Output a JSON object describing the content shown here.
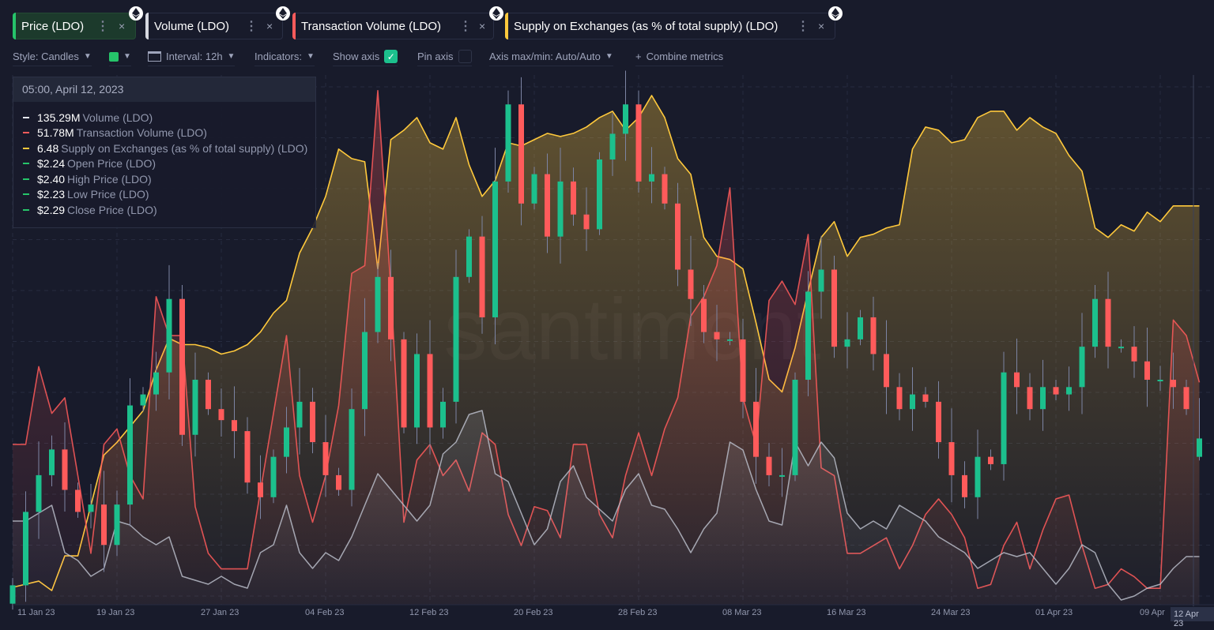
{
  "header": {
    "tabs": [
      {
        "label": "Price (LDO)",
        "color": "#26c46a",
        "active": true
      },
      {
        "label": "Volume (LDO)",
        "color": "#d6d8e0"
      },
      {
        "label": "Transaction Volume (LDO)",
        "color": "#ff5b5b"
      },
      {
        "label": "Supply on Exchanges (as % of total supply) (LDO)",
        "color": "#ffc93c"
      }
    ],
    "menu_icon": "⋮",
    "close_icon": "×"
  },
  "toolbar": {
    "style": "Style: Candles",
    "color_swatch": "#26c46a",
    "interval": "Interval: 12h",
    "indicators": "Indicators:",
    "show_axis": "Show axis",
    "show_axis_checked": true,
    "pin_axis": "Pin axis",
    "pin_axis_checked": false,
    "axis_maxmin": "Axis max/min: Auto/Auto",
    "combine": "Combine metrics",
    "combine_icon": "+"
  },
  "tooltip": {
    "date": "05:00, April 12, 2023",
    "rows": [
      {
        "value": "135.29M",
        "label": "Volume (LDO)",
        "color": "#e6e8f0"
      },
      {
        "value": "51.78M",
        "label": "Transaction Volume (LDO)",
        "color": "#ff5b5b"
      },
      {
        "value": "6.48",
        "label": "Supply on Exchanges (as % of total supply) (LDO)",
        "color": "#ffc93c"
      },
      {
        "value": "$2.24",
        "label": "Open Price (LDO)",
        "color": "#26c46a"
      },
      {
        "value": "$2.40",
        "label": "High Price (LDO)",
        "color": "#26c46a"
      },
      {
        "value": "$2.23",
        "label": "Low Price (LDO)",
        "color": "#26c46a"
      },
      {
        "value": "$2.29",
        "label": "Close Price (LDO)",
        "color": "#26c46a"
      }
    ]
  },
  "watermark": "santiment",
  "chart_data": {
    "type": "candlestick+line",
    "title": "",
    "x_start": "2023-01-11",
    "x_step_days": 1,
    "x_tick_labels": [
      "11 Jan 23",
      "19 Jan 23",
      "27 Jan 23",
      "04 Feb 23",
      "12 Feb 23",
      "20 Feb 23",
      "28 Feb 23",
      "08 Mar 23",
      "16 Mar 23",
      "24 Mar 23",
      "01 Apr 23",
      "09 Apr"
    ],
    "x_tick_days": [
      0,
      8,
      16,
      24,
      32,
      40,
      48,
      56,
      64,
      72,
      80,
      88
    ],
    "crosshair_label": "12 Apr 23",
    "grid": true,
    "colors": {
      "up": "#1cc08d",
      "down": "#ff5b5b",
      "wick": "#7c84a3"
    },
    "price": {
      "name": "Price (LDO)",
      "unit": "USD",
      "ylim": [
        1.85,
        3.25
      ],
      "close": [
        1.89,
        2.09,
        2.19,
        2.26,
        2.15,
        2.09,
        2.11,
        2.0,
        2.11,
        2.38,
        2.41,
        2.47,
        2.67,
        2.3,
        2.45,
        2.37,
        2.34,
        2.31,
        2.17,
        2.13,
        2.24,
        2.32,
        2.39,
        2.28,
        2.19,
        2.15,
        2.37,
        2.58,
        2.73,
        2.56,
        2.32,
        2.52,
        2.32,
        2.39,
        2.73,
        2.84,
        2.62,
        2.99,
        3.2,
        2.93,
        3.01,
        2.84,
        2.99,
        2.9,
        2.86,
        3.05,
        3.12,
        3.2,
        2.99,
        3.01,
        2.93,
        2.75,
        2.67,
        2.58,
        2.56,
        2.56,
        2.39,
        2.24,
        2.19,
        2.19,
        2.45,
        2.69,
        2.75,
        2.54,
        2.56,
        2.62,
        2.52,
        2.43,
        2.37,
        2.41,
        2.39,
        2.28,
        2.19,
        2.13,
        2.24,
        2.22,
        2.47,
        2.43,
        2.37,
        2.43,
        2.41,
        2.43,
        2.54,
        2.67,
        2.54,
        2.54,
        2.5,
        2.45,
        2.45,
        2.43,
        2.37,
        2.29
      ],
      "last_candle": {
        "open": 2.24,
        "high": 2.4,
        "low": 2.23,
        "close": 2.29
      }
    },
    "series": [
      {
        "name": "Supply on Exchanges (as % of total supply) (LDO)",
        "color": "#ffc93c",
        "ylim": [
          5.23,
          6.86
        ],
        "values": [
          5.27,
          5.28,
          5.29,
          5.26,
          5.37,
          5.37,
          5.53,
          5.69,
          5.73,
          5.78,
          5.83,
          5.96,
          6.06,
          6.04,
          6.04,
          6.03,
          6.01,
          6.02,
          6.04,
          6.08,
          6.14,
          6.18,
          6.33,
          6.41,
          6.51,
          6.66,
          6.63,
          6.62,
          6.28,
          6.69,
          6.72,
          6.76,
          6.68,
          6.66,
          6.76,
          6.61,
          6.51,
          6.56,
          6.68,
          6.67,
          6.69,
          6.71,
          6.7,
          6.71,
          6.73,
          6.76,
          6.78,
          6.72,
          6.76,
          6.83,
          6.76,
          6.63,
          6.58,
          6.38,
          6.32,
          6.31,
          6.28,
          6.11,
          5.93,
          5.89,
          6.03,
          6.21,
          6.38,
          6.43,
          6.32,
          6.38,
          6.39,
          6.41,
          6.42,
          6.66,
          6.73,
          6.72,
          6.68,
          6.69,
          6.76,
          6.78,
          6.78,
          6.72,
          6.76,
          6.73,
          6.71,
          6.64,
          6.59,
          6.41,
          6.38,
          6.42,
          6.4,
          6.46,
          6.43,
          6.48,
          6.48,
          6.48
        ]
      },
      {
        "name": "Transaction Volume (LDO)",
        "color": "#ff5b5b",
        "unit": "M",
        "ylim": [
          18.2,
          97.5
        ],
        "values": [
          42.2,
          42.2,
          54.2,
          47.0,
          49.4,
          37.4,
          25.4,
          42.2,
          44.6,
          37.4,
          33.8,
          65.0,
          59.0,
          59.0,
          32.6,
          25.4,
          23.0,
          23.0,
          23.0,
          35.0,
          47.0,
          59.0,
          37.4,
          30.2,
          37.4,
          48.2,
          68.6,
          69.8,
          96.8,
          66.2,
          30.2,
          39.8,
          42.2,
          37.4,
          39.8,
          35.0,
          44.0,
          42.2,
          31.4,
          26.6,
          32.6,
          32.0,
          27.8,
          42.2,
          42.2,
          31.4,
          27.8,
          37.4,
          44.0,
          37.4,
          44.6,
          49.4,
          62.0,
          65.0,
          69.8,
          81.8,
          49.4,
          42.2,
          64.4,
          67.4,
          63.8,
          74.6,
          38.6,
          37.4,
          25.4,
          25.4,
          26.6,
          27.8,
          23.0,
          26.6,
          31.4,
          33.8,
          31.4,
          27.8,
          20.0,
          20.6,
          26.6,
          30.2,
          23.0,
          29.0,
          33.8,
          34.4,
          26.6,
          20.0,
          20.6,
          23.0,
          21.8,
          20.0,
          20.0,
          61.4,
          59.0,
          51.78
        ]
      },
      {
        "name": "Volume (LDO)",
        "color": "#b9bcc8",
        "unit": "M",
        "ylim": [
          52.8,
          1029.3
        ],
        "values": [
          202.8,
          202.8,
          217.8,
          232.8,
          142.8,
          127.8,
          97.8,
          112.8,
          202.8,
          195.3,
          172.8,
          157.8,
          172.8,
          97.8,
          90.3,
          82.8,
          97.8,
          82.8,
          75.3,
          142.8,
          157.8,
          232.8,
          142.8,
          112.8,
          142.8,
          127.8,
          172.8,
          232.8,
          292.8,
          262.8,
          232.8,
          202.8,
          232.8,
          330.3,
          352.8,
          405.3,
          412.8,
          292.8,
          277.8,
          217.8,
          157.8,
          187.8,
          277.8,
          307.8,
          247.8,
          225.3,
          202.8,
          262.8,
          292.8,
          232.8,
          225.3,
          187.8,
          142.8,
          187.8,
          217.8,
          352.8,
          337.8,
          262.8,
          202.8,
          195.3,
          352.8,
          307.8,
          352.8,
          322.8,
          217.8,
          187.8,
          202.8,
          187.8,
          232.8,
          217.8,
          202.8,
          172.8,
          157.8,
          142.8,
          112.8,
          127.8,
          142.8,
          135.3,
          142.8,
          112.8,
          82.8,
          112.8,
          157.8,
          142.8,
          82.8,
          52.8,
          60.3,
          75.3,
          82.8,
          112.8,
          135.3,
          135.29
        ]
      }
    ]
  }
}
